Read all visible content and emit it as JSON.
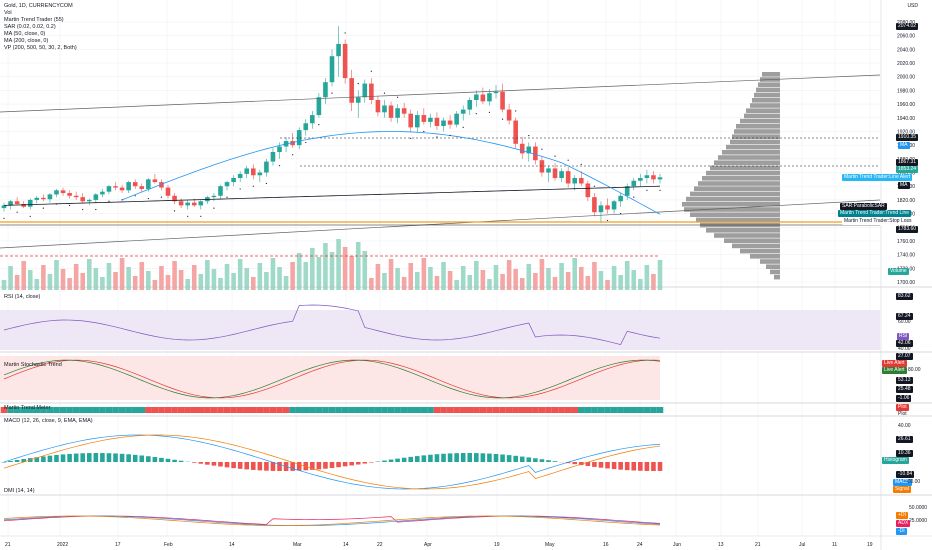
{
  "colors": {
    "up": "#26a69a",
    "down": "#ef5350",
    "upLight": "#9fd9c8",
    "downLight": "#f5a6a4",
    "profile": "#9e9e9e",
    "ma50": "#2196f3",
    "ma200": "#131722",
    "sar": "#131722",
    "orange": "#f59d1b",
    "rsi": "#7e57c2",
    "grid": "#eceef2"
  },
  "legend": {
    "title": "Gold, 1D, CURRENCYCOM",
    "vol": "Vol",
    "mtt": "Martin Trend Trader (55)",
    "sar": "SAR (0.02, 0.02, 0.2)",
    "ma50": "MA (50, close, 0)",
    "ma200": "MA (200, close, 0)",
    "vp": "VP (200, 500, 50, 30, 2, Both)",
    "rsi": "RSI (14, close)",
    "stoch": "Martin Stochastic Trend",
    "trendmeter": "Martin Trend Meter",
    "macd": "MACD (12, 26, close, 9, EMA, EMA)",
    "dmi": "DMI (14, 14)"
  },
  "currency": "USD",
  "price_axis": [
    "2080.00",
    "2060.00",
    "2040.00",
    "2020.00",
    "2000.00",
    "1980.00",
    "1960.00",
    "1940.00",
    "1920.00",
    "1900.00",
    "1880.00",
    "1860.00",
    "1840.00",
    "1820.00",
    "1800.00",
    "1780.00",
    "1760.00",
    "1740.00",
    "1720.00",
    "1700.00"
  ],
  "price_tags": {
    "high": "2074.02",
    "r1": "1910.35",
    "ma": "MA",
    "p1": "1867.31",
    "p2": "1853.24",
    "mtt_live": "Martin Trend Trader:Line Alert",
    "ma2": "MA",
    "sar": "SAR:ParabolicSAR",
    "trend_line": "Martin Trend Trader:Trend Line",
    "stop_loss": "Martin Trend Trader:Stop Loss",
    "low": "1783.60",
    "volume": "Volume"
  },
  "rsi_axis": {
    "v1": "83.62",
    "v2": "67.24",
    "v3": "60.00",
    "v4": "42.06",
    "v5": "40.00",
    "tag": "RSI"
  },
  "stoch_axis": {
    "v1": "27.07",
    "v2": "80.00",
    "v3": "53.13",
    "v4": "25.48",
    "v5": "-1.06",
    "live1": "Live Alert",
    "live2": "Live Alert"
  },
  "trendmeter_axis": {
    "v1": "Plot",
    "v2": "Plot"
  },
  "macd_axis": {
    "v1": "40.00",
    "v2": "26.61",
    "v3": "10.36",
    "v4": "-10.84",
    "v5": "-20.00",
    "hist": "Histogram",
    "macd": "MACD",
    "signal": "Signal"
  },
  "dmi_axis": {
    "v1": "50.0000",
    "v2": "25.0000",
    "v3": "+DI",
    "v4": "ADX",
    "v5": "-DI"
  },
  "time_axis": [
    {
      "t": "21",
      "x": 8
    },
    {
      "t": "2022",
      "x": 60
    },
    {
      "t": "17",
      "x": 118
    },
    {
      "t": "Feb",
      "x": 167
    },
    {
      "t": "14",
      "x": 232
    },
    {
      "t": "Mar",
      "x": 296
    },
    {
      "t": "14",
      "x": 346
    },
    {
      "t": "22",
      "x": 380
    },
    {
      "t": "Apr",
      "x": 427
    },
    {
      "t": "19",
      "x": 497
    },
    {
      "t": "May",
      "x": 548
    },
    {
      "t": "16",
      "x": 606
    },
    {
      "t": "24",
      "x": 640
    },
    {
      "t": "Jun",
      "x": 676
    },
    {
      "t": "13",
      "x": 721
    },
    {
      "t": "21",
      "x": 758
    },
    {
      "t": "Jul",
      "x": 802
    },
    {
      "t": "11",
      "x": 835
    },
    {
      "t": "19",
      "x": 870
    }
  ],
  "chart_data": {
    "type": "candlestick",
    "candles": [
      [
        1808,
        1816,
        1803,
        1812
      ],
      [
        1812,
        1820,
        1806,
        1818
      ],
      [
        1818,
        1824,
        1812,
        1814
      ],
      [
        1814,
        1818,
        1808,
        1810
      ],
      [
        1810,
        1822,
        1806,
        1820
      ],
      [
        1820,
        1826,
        1815,
        1823
      ],
      [
        1823,
        1828,
        1818,
        1821
      ],
      [
        1821,
        1830,
        1816,
        1828
      ],
      [
        1828,
        1836,
        1824,
        1834
      ],
      [
        1834,
        1838,
        1826,
        1830
      ],
      [
        1830,
        1834,
        1822,
        1826
      ],
      [
        1826,
        1832,
        1820,
        1824
      ],
      [
        1824,
        1830,
        1816,
        1818
      ],
      [
        1818,
        1822,
        1812,
        1820
      ],
      [
        1820,
        1830,
        1816,
        1828
      ],
      [
        1828,
        1836,
        1824,
        1832
      ],
      [
        1832,
        1842,
        1828,
        1840
      ],
      [
        1840,
        1846,
        1834,
        1838
      ],
      [
        1838,
        1842,
        1830,
        1834
      ],
      [
        1834,
        1848,
        1830,
        1846
      ],
      [
        1846,
        1850,
        1836,
        1840
      ],
      [
        1840,
        1844,
        1832,
        1836
      ],
      [
        1836,
        1852,
        1832,
        1850
      ],
      [
        1850,
        1858,
        1844,
        1846
      ],
      [
        1846,
        1850,
        1834,
        1838
      ],
      [
        1838,
        1842,
        1822,
        1826
      ],
      [
        1826,
        1830,
        1814,
        1818
      ],
      [
        1818,
        1822,
        1808,
        1812
      ],
      [
        1812,
        1820,
        1806,
        1816
      ],
      [
        1816,
        1822,
        1810,
        1812
      ],
      [
        1812,
        1820,
        1806,
        1818
      ],
      [
        1818,
        1826,
        1814,
        1824
      ],
      [
        1824,
        1830,
        1818,
        1826
      ],
      [
        1826,
        1842,
        1822,
        1840
      ],
      [
        1840,
        1848,
        1834,
        1846
      ],
      [
        1846,
        1856,
        1840,
        1852
      ],
      [
        1852,
        1862,
        1846,
        1858
      ],
      [
        1858,
        1870,
        1852,
        1866
      ],
      [
        1866,
        1872,
        1850,
        1856
      ],
      [
        1856,
        1864,
        1846,
        1860
      ],
      [
        1860,
        1880,
        1854,
        1876
      ],
      [
        1876,
        1896,
        1870,
        1890
      ],
      [
        1890,
        1904,
        1880,
        1898
      ],
      [
        1898,
        1912,
        1890,
        1906
      ],
      [
        1906,
        1918,
        1896,
        1900
      ],
      [
        1900,
        1926,
        1894,
        1922
      ],
      [
        1922,
        1938,
        1914,
        1932
      ],
      [
        1932,
        1950,
        1924,
        1944
      ],
      [
        1944,
        1976,
        1940,
        1970
      ],
      [
        1970,
        1998,
        1960,
        1992
      ],
      [
        1992,
        2040,
        1986,
        2030
      ],
      [
        2030,
        2074,
        2000,
        2048
      ],
      [
        2048,
        2054,
        1990,
        1998
      ],
      [
        1998,
        2010,
        1950,
        1962
      ],
      [
        1962,
        1980,
        1940,
        1970
      ],
      [
        1970,
        1996,
        1962,
        1990
      ],
      [
        1990,
        1998,
        1960,
        1966
      ],
      [
        1966,
        1972,
        1942,
        1948
      ],
      [
        1948,
        1966,
        1940,
        1958
      ],
      [
        1958,
        1964,
        1934,
        1940
      ],
      [
        1940,
        1960,
        1932,
        1954
      ],
      [
        1954,
        1962,
        1940,
        1946
      ],
      [
        1946,
        1952,
        1920,
        1926
      ],
      [
        1926,
        1950,
        1918,
        1944
      ],
      [
        1944,
        1954,
        1930,
        1934
      ],
      [
        1934,
        1946,
        1926,
        1940
      ],
      [
        1940,
        1948,
        1922,
        1928
      ],
      [
        1928,
        1940,
        1920,
        1936
      ],
      [
        1936,
        1944,
        1924,
        1930
      ],
      [
        1930,
        1950,
        1926,
        1946
      ],
      [
        1946,
        1958,
        1936,
        1952
      ],
      [
        1952,
        1970,
        1944,
        1966
      ],
      [
        1966,
        1980,
        1956,
        1974
      ],
      [
        1974,
        1984,
        1960,
        1964
      ],
      [
        1964,
        1982,
        1958,
        1976
      ],
      [
        1976,
        1988,
        1968,
        1978
      ],
      [
        1978,
        1990,
        1948,
        1952
      ],
      [
        1952,
        1960,
        1930,
        1936
      ],
      [
        1936,
        1940,
        1896,
        1902
      ],
      [
        1902,
        1912,
        1880,
        1888
      ],
      [
        1888,
        1904,
        1876,
        1898
      ],
      [
        1898,
        1904,
        1872,
        1878
      ],
      [
        1878,
        1884,
        1854,
        1860
      ],
      [
        1860,
        1870,
        1846,
        1866
      ],
      [
        1866,
        1874,
        1848,
        1852
      ],
      [
        1852,
        1866,
        1846,
        1862
      ],
      [
        1862,
        1868,
        1838,
        1844
      ],
      [
        1844,
        1856,
        1834,
        1852
      ],
      [
        1852,
        1862,
        1840,
        1844
      ],
      [
        1844,
        1848,
        1818,
        1824
      ],
      [
        1824,
        1830,
        1796,
        1802
      ],
      [
        1802,
        1818,
        1786,
        1812
      ],
      [
        1812,
        1822,
        1800,
        1806
      ],
      [
        1806,
        1820,
        1800,
        1818
      ],
      [
        1818,
        1830,
        1810,
        1826
      ],
      [
        1826,
        1844,
        1820,
        1840
      ],
      [
        1840,
        1852,
        1834,
        1848
      ],
      [
        1848,
        1858,
        1840,
        1852
      ],
      [
        1852,
        1864,
        1844,
        1856
      ],
      [
        1856,
        1862,
        1844,
        1850
      ],
      [
        1850,
        1858,
        1844,
        1853
      ]
    ]
  }
}
